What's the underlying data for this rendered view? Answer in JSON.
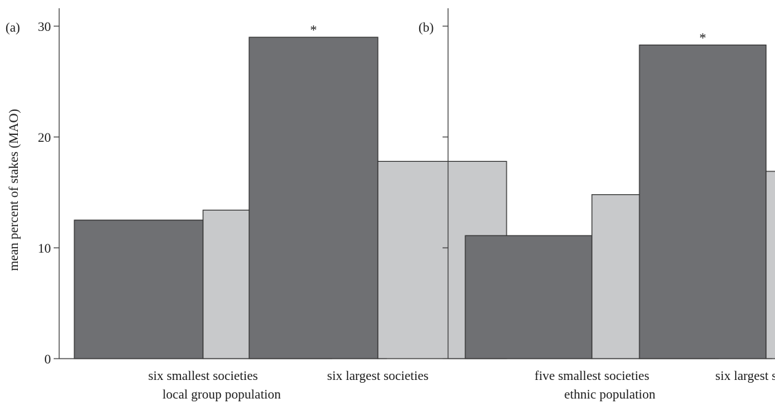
{
  "colors": {
    "dark_series": "#6f7073",
    "light_series": "#c8c9cb"
  },
  "chart_data": [
    {
      "type": "bar",
      "panel_label": "(a)",
      "categories": [
        "six smallest societies",
        "six largest societies"
      ],
      "series": [
        {
          "values": [
            12.5,
            29.0
          ]
        },
        {
          "values": [
            13.4,
            17.8
          ]
        }
      ],
      "annotations": [
        "",
        "*"
      ],
      "xlabel": "local group population",
      "ylabel": "mean percent of stakes (MAO)",
      "ylim": [
        0,
        30
      ],
      "yticks": [
        0,
        10,
        20,
        30
      ],
      "ytick_labels": [
        "0",
        "10",
        "20",
        "30"
      ],
      "grid": false
    },
    {
      "type": "bar",
      "panel_label": "(b)",
      "categories": [
        "five smallest societies",
        "six largest societies"
      ],
      "series": [
        {
          "values": [
            11.1,
            28.3
          ]
        },
        {
          "values": [
            14.8,
            16.9
          ]
        }
      ],
      "annotations": [
        "",
        "*"
      ],
      "xlabel": "ethnic population",
      "ylim": [
        0,
        30
      ],
      "yticks": [
        0,
        10,
        20,
        30
      ],
      "ytick_labels": [
        "",
        "",
        "",
        ""
      ],
      "grid": false
    }
  ]
}
